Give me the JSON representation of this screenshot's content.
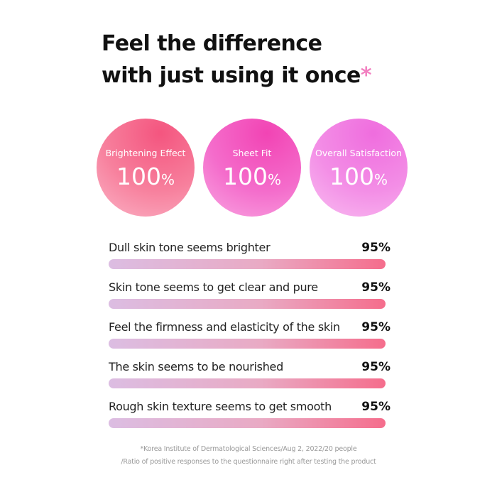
{
  "header": {
    "title_lines": [
      "Feel the difference",
      "with just using it once"
    ],
    "asterisk": "*"
  },
  "circles": [
    {
      "label": "Brightening Effect",
      "value": "100",
      "unit": "%"
    },
    {
      "label": "Sheet Fit",
      "value": "100",
      "unit": "%"
    },
    {
      "label": "Overall Satisfaction",
      "value": "100",
      "unit": "%"
    }
  ],
  "rows": [
    {
      "label": "Dull skin tone seems brighter",
      "percent": "95%"
    },
    {
      "label": "Skin tone seems to get clear and pure",
      "percent": "95%"
    },
    {
      "label": "Feel the firmness and elasticity of the skin",
      "percent": "95%"
    },
    {
      "label": "The skin seems to be nourished",
      "percent": "95%"
    },
    {
      "label": "Rough skin texture seems to get smooth",
      "percent": "95%"
    }
  ],
  "footnote": [
    "*Korea Institute of Dermatological Sciences/Aug 2, 2022/20 people",
    "/Ratio of positive responses to the questionnaire right after testing the product"
  ]
}
